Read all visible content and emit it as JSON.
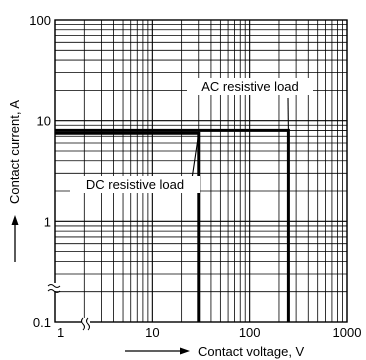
{
  "chart_data": {
    "type": "line",
    "title": "",
    "xlabel": "Contact voltage, V",
    "ylabel": "Contact current, A",
    "x_scale": "log",
    "y_scale": "log",
    "xlim": [
      1,
      1000
    ],
    "ylim": [
      0.1,
      100
    ],
    "grid": true,
    "x_ticks": [
      {
        "value": 1,
        "label": "1"
      },
      {
        "value": 10,
        "label": "10"
      },
      {
        "value": 100,
        "label": "100"
      },
      {
        "value": 1000,
        "label": "1000"
      }
    ],
    "y_ticks": [
      {
        "value": 0.1,
        "label": "0.1"
      },
      {
        "value": 1,
        "label": "1"
      },
      {
        "value": 10,
        "label": "10"
      },
      {
        "value": 100,
        "label": "100"
      }
    ],
    "series": [
      {
        "name": "AC resistive load",
        "x": [
          1,
          250,
          250
        ],
        "y": [
          8,
          8,
          0.1
        ]
      },
      {
        "name": "DC resistive load",
        "x": [
          1,
          30,
          30
        ],
        "y": [
          7.5,
          7.5,
          0.1
        ]
      }
    ],
    "annotations": [
      {
        "text": "AC resistive load",
        "points_to": [
          250,
          8
        ]
      },
      {
        "text": "DC resistive load",
        "points_to": [
          30,
          7.5
        ]
      }
    ]
  }
}
